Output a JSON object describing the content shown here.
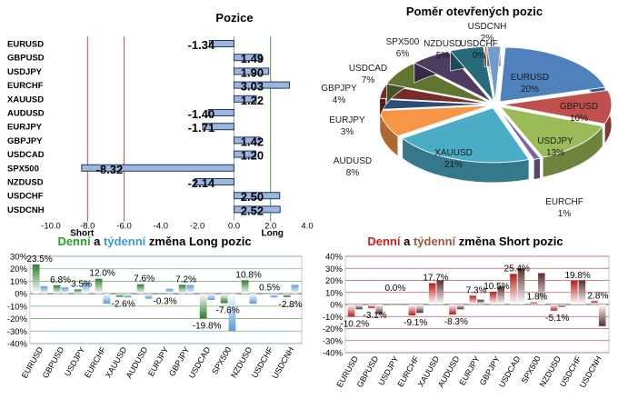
{
  "colors": {
    "long_red_line": "#c0504d",
    "long_green_line": "#3f9b3f",
    "bar_fill": "#9bb7de",
    "bar_stroke": "#1f3864",
    "daily_long": "#2e7d32",
    "weekly_long": "#5b9bd5",
    "daily_short": "#b71c1c",
    "weekly_short": "#5a2e2e",
    "title_green": "#2e9e2e",
    "title_blue": "#3a9ad9",
    "title_red": "#d01c1c",
    "title_brown": "#9a5b3c"
  },
  "chart_data": [
    {
      "type": "bar",
      "orientation": "horizontal",
      "title": "Pozice",
      "categories": [
        "EURUSD",
        "GBPUSD",
        "USDJPY",
        "EURCHF",
        "XAUUSD",
        "AUDUSD",
        "EURJPY",
        "GBPJPY",
        "USDCAD",
        "SPX500",
        "NZDUSD",
        "USDCHF",
        "USDCNH"
      ],
      "values": [
        -1.34,
        1.49,
        1.9,
        3.03,
        1.22,
        -1.4,
        -1.71,
        1.42,
        1.2,
        -8.32,
        -2.14,
        2.5,
        2.52
      ],
      "value_labels": [
        "-1.34",
        "1.49",
        "1.90",
        "3.03",
        "1.22",
        "-1.40",
        "-1.71",
        "1.42",
        "1.20",
        "-8.32",
        "-2.14",
        "2.50",
        "2.52"
      ],
      "xlim": [
        -10,
        4
      ],
      "x_ticks": [
        "-10.0",
        "-8.0",
        "-6.0",
        "-4.0",
        "-2.0",
        "0.0",
        "2.0",
        "4.0"
      ],
      "reference_lines": [
        {
          "x": -8,
          "label": "Short",
          "color": "red"
        },
        {
          "x": -6,
          "label": "",
          "color": "red"
        },
        {
          "x": 2,
          "label": "Long",
          "color": "green"
        }
      ]
    },
    {
      "type": "pie",
      "style": "3d",
      "title": "Poměr  otevřených pozic",
      "slices": [
        {
          "label": "EURUSD",
          "pct": 20,
          "value_label": "20%",
          "color": "#4f81bd"
        },
        {
          "label": "GBPUSD",
          "pct": 10,
          "value_label": "10%",
          "color": "#c0504d"
        },
        {
          "label": "USDJPY",
          "pct": 13,
          "value_label": "13%",
          "color": "#9bbb59"
        },
        {
          "label": "EURCHF",
          "pct": 1,
          "value_label": "1%",
          "color": "#8064a2"
        },
        {
          "label": "XAUUSD",
          "pct": 21,
          "value_label": "21%",
          "color": "#4bacc6"
        },
        {
          "label": "AUDUSD",
          "pct": 8,
          "value_label": "8%",
          "color": "#f79646"
        },
        {
          "label": "EURJPY",
          "pct": 3,
          "value_label": "3%",
          "color": "#2c4d75"
        },
        {
          "label": "GBPJPY",
          "pct": 4,
          "value_label": "4%",
          "color": "#772c2a"
        },
        {
          "label": "USDCAD",
          "pct": 7,
          "value_label": "7%",
          "color": "#5f7530"
        },
        {
          "label": "SPX500",
          "pct": 6,
          "value_label": "6%",
          "color": "#4d3b62"
        },
        {
          "label": "NZDUSD",
          "pct": 5,
          "value_label": "5%",
          "color": "#276a7c"
        },
        {
          "label": "USDCHF",
          "pct": 0,
          "value_label": "0%",
          "color": "#b65708"
        },
        {
          "label": "USDCNH",
          "pct": 2,
          "value_label": "2%",
          "color": "#729aca"
        }
      ]
    },
    {
      "type": "bar",
      "title_parts": [
        {
          "text": "Denní",
          "color": "green"
        },
        {
          "text": " a ",
          "color": "black"
        },
        {
          "text": "týdenní",
          "color": "blue"
        },
        {
          "text": " změna Long pozic",
          "color": "black"
        }
      ],
      "categories": [
        "EURUSD",
        "GBPUSD",
        "USDJPY",
        "EURCHF",
        "XAUUSD",
        "AUDUSD",
        "EURJPY",
        "GBPJPY",
        "USDCAD",
        "SPX500",
        "NZDUSD",
        "USDCHF",
        "USDCNH"
      ],
      "series": [
        {
          "name": "Denní",
          "values": [
            23.5,
            6.8,
            3.5,
            12.0,
            -2.6,
            7.6,
            -0.3,
            7.2,
            -19.8,
            -7.6,
            10.8,
            0.5,
            -2.8
          ]
        },
        {
          "name": "Týdenní",
          "values": [
            6,
            5,
            9,
            -8,
            -3,
            -4,
            4,
            7,
            -5,
            -30,
            -8,
            -3,
            7
          ]
        }
      ],
      "data_labels": [
        "23.5%",
        "6.8%",
        "3.5%",
        "12.0%",
        "-2.6%",
        "7.6%",
        "-0.3%",
        "7.2%",
        "-19.8%",
        "-7.6%",
        "10.8%",
        "0.5%",
        "-2.8%"
      ],
      "ylim": [
        -40,
        30
      ],
      "y_ticks": [
        "30%",
        "20%",
        "10%",
        "0%",
        "-10%",
        "-20%",
        "-30%",
        "-40%"
      ]
    },
    {
      "type": "bar",
      "title_parts": [
        {
          "text": "Denní",
          "color": "red"
        },
        {
          "text": " a ",
          "color": "black"
        },
        {
          "text": "týdenní",
          "color": "brown"
        },
        {
          "text": " změna Short pozic",
          "color": "black"
        }
      ],
      "categories": [
        "EURUSD",
        "GBPUSD",
        "USDJPY",
        "EURCHF",
        "XAUUSD",
        "AUDUSD",
        "EURJPY",
        "GBPJPY",
        "USDCAD",
        "SPX500",
        "NZDUSD",
        "USDCHF",
        "USDCNH"
      ],
      "series": [
        {
          "name": "Denní",
          "values": [
            -10.2,
            -3.1,
            0.0,
            -9.1,
            17.7,
            -8.3,
            7.3,
            10.5,
            25.4,
            1.8,
            -5.1,
            19.8,
            2.8
          ]
        },
        {
          "name": "Týdenní",
          "values": [
            -4,
            -8,
            0,
            -7,
            20,
            -4,
            4,
            15,
            30,
            26,
            -2,
            20,
            -18
          ]
        }
      ],
      "data_labels": [
        "-10.2%",
        "-3.1%",
        "0.0%",
        "-9.1%",
        "17.7%",
        "-8.3%",
        "7.3%",
        "10.5%",
        "25.4%",
        "1.8%",
        "-5.1%",
        "19.8%",
        "2.8%"
      ],
      "ylim": [
        -40,
        40
      ],
      "y_ticks": [
        "40%",
        "30%",
        "20%",
        "10%",
        "0%",
        "-10%",
        "-20%",
        "-30%",
        "-40%"
      ]
    }
  ]
}
